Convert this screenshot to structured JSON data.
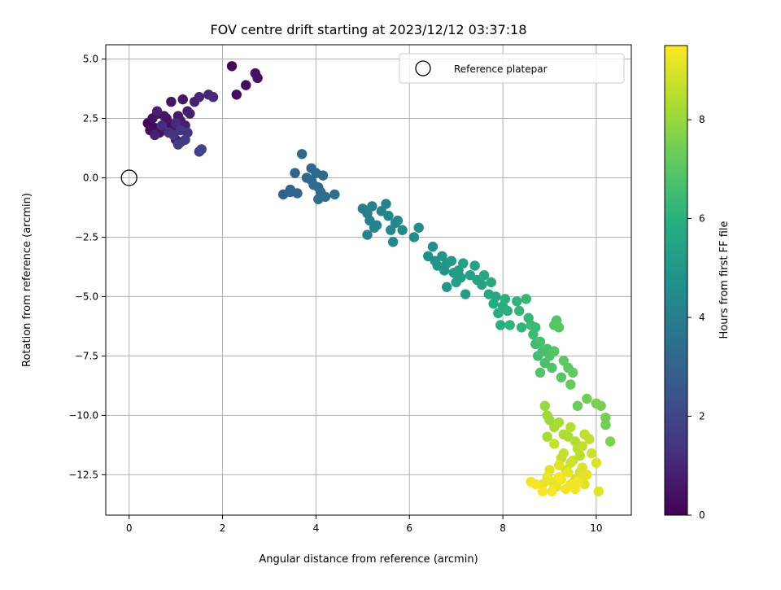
{
  "chart_data": {
    "type": "scatter",
    "title": "FOV centre drift starting at 2023/12/12 03:37:18",
    "xlabel": "Angular distance from reference (arcmin)",
    "ylabel": "Rotation from reference (arcmin)",
    "xlim": [
      -0.5,
      10.75
    ],
    "ylim": [
      -14.2,
      5.6
    ],
    "x_ticks": [
      0,
      2,
      4,
      6,
      8,
      10
    ],
    "y_ticks": [
      5.0,
      2.5,
      0.0,
      -2.5,
      -5.0,
      -7.5,
      -10.0,
      -12.5
    ],
    "x_tick_labels": [
      "0",
      "2",
      "4",
      "6",
      "8",
      "10"
    ],
    "y_tick_labels": [
      "5.0",
      "2.5",
      "0.0",
      "−2.5",
      "−5.0",
      "−7.5",
      "−10.0",
      "−12.5"
    ],
    "grid": true,
    "legend": {
      "position": "top-right",
      "entries": [
        {
          "label": "Reference platepar",
          "marker": "open-circle"
        }
      ]
    },
    "reference_point": {
      "x": 0.0,
      "y": 0.0
    },
    "colorbar": {
      "label": "Hours from first FF file",
      "colormap": "viridis",
      "range": [
        0,
        9.5
      ],
      "ticks": [
        0,
        2,
        4,
        6,
        8
      ],
      "tick_labels": [
        "0",
        "2",
        "4",
        "6",
        "8"
      ]
    },
    "series": [
      {
        "points": [
          [
            0.4,
            2.3,
            0.1
          ],
          [
            0.55,
            2.1,
            0.2
          ],
          [
            0.6,
            2.7,
            0.3
          ],
          [
            0.7,
            2.0,
            0.3
          ],
          [
            0.85,
            2.3,
            0.4
          ],
          [
            0.95,
            2.1,
            0.5
          ],
          [
            0.9,
            3.2,
            0.5
          ],
          [
            1.05,
            2.6,
            0.6
          ],
          [
            1.0,
            1.6,
            0.6
          ],
          [
            1.15,
            3.3,
            0.6
          ],
          [
            1.25,
            2.8,
            0.7
          ],
          [
            1.1,
            2.4,
            0.7
          ],
          [
            0.5,
            2.5,
            0.4
          ],
          [
            0.65,
            1.9,
            0.5
          ],
          [
            0.8,
            2.5,
            0.6
          ],
          [
            1.2,
            2.2,
            0.8
          ],
          [
            1.1,
            1.5,
            0.9
          ],
          [
            1.4,
            3.2,
            0.9
          ],
          [
            1.5,
            3.4,
            1.0
          ],
          [
            1.7,
            3.5,
            1.0
          ],
          [
            1.8,
            3.4,
            1.1
          ],
          [
            0.45,
            2.0,
            0.3
          ],
          [
            0.75,
            2.6,
            0.5
          ],
          [
            1.3,
            2.7,
            0.8
          ],
          [
            2.2,
            4.7,
            0.2
          ],
          [
            2.3,
            3.5,
            0.3
          ],
          [
            2.5,
            3.9,
            0.3
          ],
          [
            2.7,
            4.4,
            0.4
          ],
          [
            2.75,
            4.2,
            0.4
          ],
          [
            1.5,
            1.1,
            1.8
          ],
          [
            1.55,
            1.2,
            1.9
          ],
          [
            1.05,
            1.4,
            1.7
          ],
          [
            1.2,
            1.6,
            1.6
          ],
          [
            0.95,
            1.8,
            1.5
          ],
          [
            1.1,
            2.0,
            1.5
          ],
          [
            0.85,
            1.9,
            1.3
          ],
          [
            0.7,
            2.2,
            1.2
          ],
          [
            1.0,
            2.3,
            1.1
          ],
          [
            0.6,
            2.8,
            0.8
          ],
          [
            1.25,
            1.9,
            1.4
          ],
          [
            0.55,
            1.8,
            0.9
          ],
          [
            3.3,
            -0.7,
            2.9
          ],
          [
            3.45,
            -0.5,
            2.9
          ],
          [
            3.6,
            -0.65,
            3.0
          ],
          [
            3.55,
            0.2,
            3.0
          ],
          [
            3.7,
            1.0,
            3.1
          ],
          [
            3.8,
            0.0,
            3.1
          ],
          [
            3.9,
            0.4,
            3.2
          ],
          [
            4.0,
            0.2,
            3.2
          ],
          [
            3.95,
            -0.3,
            3.3
          ],
          [
            4.1,
            -0.6,
            3.3
          ],
          [
            4.05,
            -0.9,
            3.4
          ],
          [
            4.2,
            -0.8,
            3.4
          ],
          [
            4.4,
            -0.7,
            3.5
          ],
          [
            3.9,
            -0.1,
            3.2
          ],
          [
            4.15,
            0.1,
            3.3
          ],
          [
            4.05,
            -0.4,
            3.3
          ],
          [
            3.45,
            -0.6,
            3.0
          ],
          [
            5.0,
            -1.3,
            4.0
          ],
          [
            5.1,
            -1.5,
            4.0
          ],
          [
            5.2,
            -1.2,
            4.1
          ],
          [
            5.15,
            -1.8,
            4.1
          ],
          [
            5.3,
            -2.0,
            4.2
          ],
          [
            5.4,
            -1.4,
            4.2
          ],
          [
            5.5,
            -1.1,
            4.3
          ],
          [
            5.55,
            -1.6,
            4.3
          ],
          [
            5.6,
            -2.2,
            4.4
          ],
          [
            5.65,
            -2.7,
            4.4
          ],
          [
            5.75,
            -1.8,
            4.5
          ],
          [
            5.85,
            -2.2,
            4.5
          ],
          [
            5.1,
            -2.4,
            4.1
          ],
          [
            5.25,
            -2.1,
            4.2
          ],
          [
            5.7,
            -1.9,
            4.4
          ],
          [
            6.1,
            -2.5,
            4.6
          ],
          [
            6.2,
            -2.1,
            4.6
          ],
          [
            6.4,
            -3.3,
            4.7
          ],
          [
            6.5,
            -2.9,
            4.8
          ],
          [
            6.55,
            -3.5,
            4.8
          ],
          [
            6.6,
            -3.7,
            4.9
          ],
          [
            6.7,
            -3.3,
            4.9
          ],
          [
            6.75,
            -3.9,
            5.0
          ],
          [
            6.8,
            -4.6,
            5.0
          ],
          [
            6.9,
            -3.5,
            5.1
          ],
          [
            6.95,
            -4.0,
            5.1
          ],
          [
            7.0,
            -4.4,
            5.2
          ],
          [
            7.05,
            -3.9,
            5.2
          ],
          [
            7.15,
            -3.6,
            5.3
          ],
          [
            7.2,
            -4.9,
            5.3
          ],
          [
            7.3,
            -4.1,
            5.4
          ],
          [
            7.4,
            -3.7,
            5.4
          ],
          [
            7.45,
            -4.3,
            5.5
          ],
          [
            7.55,
            -4.5,
            5.5
          ],
          [
            7.6,
            -4.1,
            5.6
          ],
          [
            7.7,
            -4.9,
            5.6
          ],
          [
            7.75,
            -4.4,
            5.7
          ],
          [
            7.85,
            -5.0,
            5.7
          ],
          [
            6.8,
            -3.6,
            5.0
          ],
          [
            7.1,
            -4.2,
            5.2
          ],
          [
            7.8,
            -5.3,
            5.8
          ],
          [
            7.9,
            -5.7,
            5.8
          ],
          [
            8.0,
            -5.4,
            5.9
          ],
          [
            7.95,
            -6.2,
            5.9
          ],
          [
            8.05,
            -5.1,
            6.0
          ],
          [
            8.1,
            -5.6,
            6.0
          ],
          [
            8.15,
            -6.2,
            6.1
          ],
          [
            8.3,
            -5.2,
            6.1
          ],
          [
            8.35,
            -5.6,
            6.2
          ],
          [
            8.4,
            -6.3,
            6.2
          ],
          [
            8.5,
            -5.1,
            6.3
          ],
          [
            8.55,
            -5.9,
            6.3
          ],
          [
            8.6,
            -6.2,
            6.4
          ],
          [
            8.65,
            -6.6,
            6.4
          ],
          [
            8.7,
            -7.0,
            6.5
          ],
          [
            8.75,
            -7.5,
            6.5
          ],
          [
            8.8,
            -6.9,
            6.6
          ],
          [
            8.85,
            -7.3,
            6.6
          ],
          [
            8.9,
            -7.8,
            6.7
          ],
          [
            8.95,
            -7.2,
            6.7
          ],
          [
            9.0,
            -7.5,
            6.8
          ],
          [
            9.05,
            -8.0,
            6.8
          ],
          [
            9.1,
            -7.3,
            6.9
          ],
          [
            9.15,
            -6.0,
            6.9
          ],
          [
            9.2,
            -6.3,
            7.0
          ],
          [
            9.25,
            -8.4,
            7.0
          ],
          [
            9.3,
            -7.7,
            7.1
          ],
          [
            9.4,
            -8.0,
            7.1
          ],
          [
            9.45,
            -8.7,
            7.2
          ],
          [
            9.5,
            -8.2,
            7.2
          ],
          [
            8.8,
            -8.2,
            6.9
          ],
          [
            9.1,
            -6.2,
            6.9
          ],
          [
            8.7,
            -6.3,
            6.4
          ],
          [
            9.6,
            -9.6,
            7.3
          ],
          [
            9.8,
            -9.3,
            7.4
          ],
          [
            10.0,
            -9.5,
            7.5
          ],
          [
            10.2,
            -10.1,
            7.5
          ],
          [
            10.2,
            -10.4,
            7.4
          ],
          [
            10.1,
            -9.6,
            7.5
          ],
          [
            10.0,
            -9.5,
            7.6
          ],
          [
            10.3,
            -11.1,
            7.6
          ],
          [
            8.9,
            -9.6,
            8.0
          ],
          [
            8.95,
            -10.0,
            8.1
          ],
          [
            9.0,
            -10.2,
            8.1
          ],
          [
            9.1,
            -10.5,
            8.2
          ],
          [
            9.2,
            -10.3,
            8.2
          ],
          [
            9.3,
            -10.8,
            8.3
          ],
          [
            9.4,
            -10.9,
            8.3
          ],
          [
            9.45,
            -10.5,
            8.4
          ],
          [
            9.55,
            -11.1,
            8.4
          ],
          [
            9.6,
            -11.4,
            8.5
          ],
          [
            9.65,
            -11.7,
            8.5
          ],
          [
            9.7,
            -11.3,
            8.6
          ],
          [
            9.75,
            -10.8,
            8.6
          ],
          [
            9.5,
            -11.9,
            8.7
          ],
          [
            9.3,
            -11.6,
            8.7
          ],
          [
            9.1,
            -11.2,
            8.7
          ],
          [
            9.35,
            -12.3,
            8.8
          ],
          [
            9.45,
            -12.0,
            8.8
          ],
          [
            9.65,
            -12.4,
            8.9
          ],
          [
            9.55,
            -12.7,
            8.9
          ],
          [
            9.7,
            -12.2,
            9.0
          ],
          [
            9.75,
            -12.9,
            9.0
          ],
          [
            9.8,
            -12.5,
            9.1
          ],
          [
            10.0,
            -12.0,
            9.0
          ],
          [
            10.05,
            -13.2,
            9.1
          ],
          [
            9.9,
            -11.6,
            8.8
          ],
          [
            9.2,
            -12.1,
            9.1
          ],
          [
            9.0,
            -12.3,
            9.1
          ],
          [
            8.95,
            -12.6,
            9.2
          ],
          [
            8.85,
            -12.9,
            9.2
          ],
          [
            9.05,
            -12.8,
            9.2
          ],
          [
            9.15,
            -13.0,
            9.2
          ],
          [
            9.25,
            -12.7,
            9.3
          ],
          [
            9.35,
            -13.1,
            9.3
          ],
          [
            9.45,
            -12.9,
            9.3
          ],
          [
            9.5,
            -13.0,
            9.3
          ],
          [
            9.6,
            -12.8,
            9.3
          ],
          [
            8.7,
            -12.9,
            9.4
          ],
          [
            8.6,
            -12.8,
            9.4
          ],
          [
            8.85,
            -13.2,
            9.4
          ],
          [
            9.05,
            -13.2,
            9.4
          ],
          [
            9.2,
            -12.6,
            9.4
          ],
          [
            9.4,
            -12.4,
            9.2
          ],
          [
            9.55,
            -13.1,
            9.3
          ],
          [
            9.7,
            -12.6,
            9.1
          ],
          [
            8.95,
            -10.9,
            8.2
          ],
          [
            9.25,
            -11.8,
            8.6
          ],
          [
            9.85,
            -11.0,
            8.6
          ]
        ]
      }
    ]
  }
}
